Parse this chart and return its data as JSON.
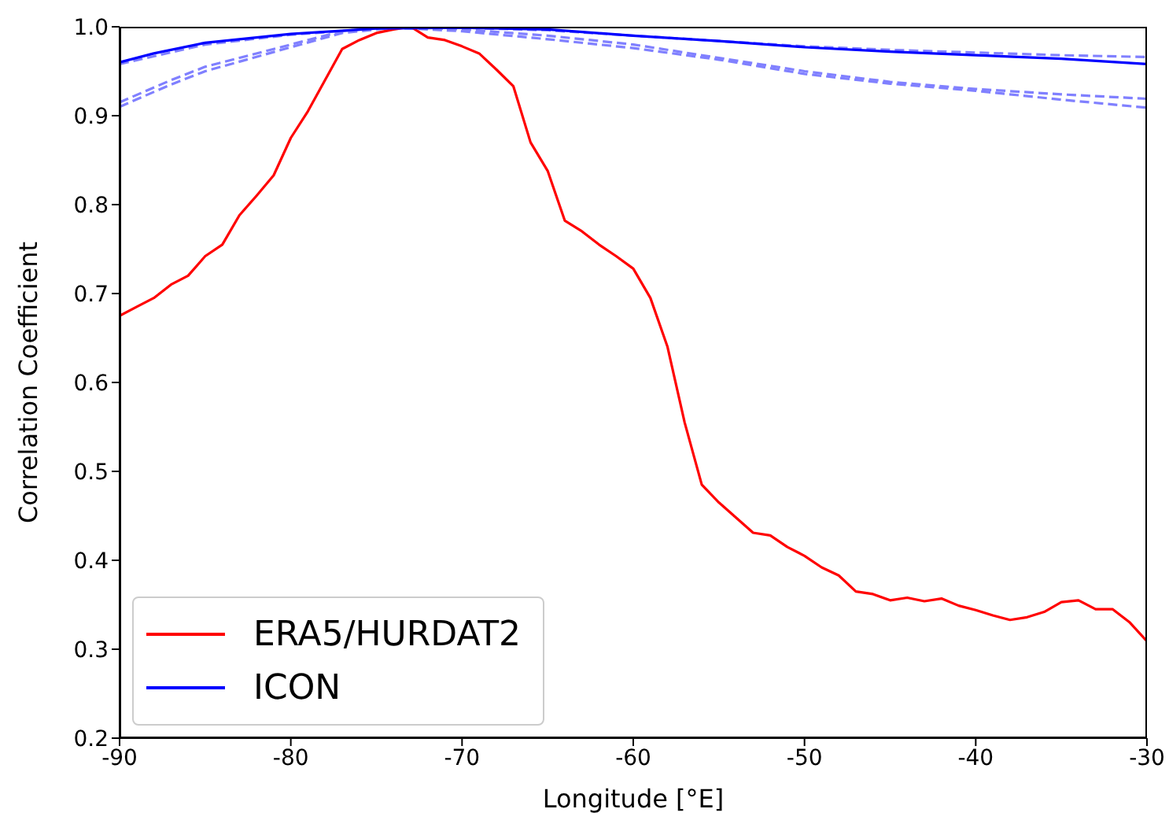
{
  "chart_data": {
    "type": "line",
    "xlabel": "Longitude [°E]",
    "ylabel": "Correlation Coefficient",
    "xlim": [
      -90,
      -30
    ],
    "xticks": [
      -90,
      -80,
      -70,
      -60,
      -50,
      -40,
      -30
    ],
    "ylim": [
      0.2,
      1.0
    ],
    "yticks": [
      0.2,
      0.3,
      0.4,
      0.5,
      0.6,
      0.7,
      0.8,
      0.9,
      {
        "value": 1.0,
        "label": "1.0"
      }
    ],
    "grid": false,
    "legend": "bottom left",
    "marker": "none",
    "series": [
      {
        "color": "#8080ff",
        "line_style": "dashed",
        "x": [
          -90,
          -85,
          -80,
          -75,
          -72,
          -70,
          -65,
          -60,
          -55,
          -50,
          -45,
          -40,
          -35,
          -30
        ],
        "values": [
          0.958,
          0.98,
          0.991,
          0.998,
          1.0,
          0.999,
          0.996,
          0.99,
          0.984,
          0.978,
          0.974,
          0.971,
          0.968,
          0.966
        ]
      },
      {
        "color": "#8080ff",
        "line_style": "dashed",
        "x": [
          -90,
          -87,
          -85,
          -80,
          -77,
          -74,
          -70,
          -65,
          -60,
          -55,
          -50,
          -45,
          -40,
          -35,
          -30
        ],
        "values": [
          0.915,
          0.94,
          0.955,
          0.98,
          0.995,
          1.0,
          0.997,
          0.99,
          0.98,
          0.965,
          0.95,
          0.938,
          0.93,
          0.924,
          0.919
        ]
      },
      {
        "color": "#8080ff",
        "line_style": "dashed",
        "x": [
          -90,
          -87,
          -85,
          -80,
          -77,
          -74,
          -70,
          -65,
          -60,
          -55,
          -50,
          -45,
          -40,
          -35,
          -30
        ],
        "values": [
          0.91,
          0.935,
          0.95,
          0.977,
          0.993,
          0.999,
          0.995,
          0.986,
          0.976,
          0.963,
          0.947,
          0.936,
          0.928,
          0.918,
          0.909
        ]
      },
      {
        "name": "ERA5/HURDAT2",
        "color": "#ff0000",
        "line_style": "solid",
        "x": [
          -90,
          -89,
          -88,
          -87,
          -86,
          -85,
          -84,
          -83,
          -82,
          -81,
          -80,
          -79,
          -78,
          -77,
          -76,
          -75,
          -74,
          -73,
          -72,
          -71,
          -70,
          -69,
          -68,
          -67,
          -66,
          -65,
          -64,
          -63,
          -62,
          -61,
          -60,
          -59,
          -58,
          -57,
          -56,
          -55,
          -54,
          -53,
          -52,
          -51,
          -50,
          -49,
          -48,
          -47,
          -46,
          -45,
          -44,
          -43,
          -42,
          -41,
          -40,
          -39,
          -38,
          -37,
          -36,
          -35,
          -34,
          -33,
          -32,
          -31,
          -30
        ],
        "values": [
          0.675,
          0.685,
          0.695,
          0.71,
          0.72,
          0.742,
          0.755,
          0.788,
          0.81,
          0.833,
          0.875,
          0.905,
          0.94,
          0.975,
          0.985,
          0.993,
          0.997,
          1.0,
          0.988,
          0.985,
          0.978,
          0.97,
          0.952,
          0.933,
          0.87,
          0.838,
          0.782,
          0.77,
          0.755,
          0.742,
          0.728,
          0.695,
          0.64,
          0.555,
          0.485,
          0.465,
          0.448,
          0.431,
          0.428,
          0.415,
          0.405,
          0.392,
          0.383,
          0.365,
          0.362,
          0.355,
          0.358,
          0.354,
          0.357,
          0.349,
          0.344,
          0.338,
          0.333,
          0.336,
          0.342,
          0.353,
          0.355,
          0.345,
          0.345,
          0.33,
          0.309
        ]
      },
      {
        "name": "ICON",
        "color": "#0000ff",
        "line_style": "solid",
        "x": [
          -90,
          -88,
          -85,
          -80,
          -75,
          -70,
          -65,
          -60,
          -55,
          -50,
          -45,
          -40,
          -35,
          -30
        ],
        "values": [
          0.96,
          0.97,
          0.982,
          0.992,
          0.998,
          0.999,
          0.997,
          0.99,
          0.984,
          0.977,
          0.972,
          0.968,
          0.964,
          0.958
        ]
      }
    ]
  }
}
